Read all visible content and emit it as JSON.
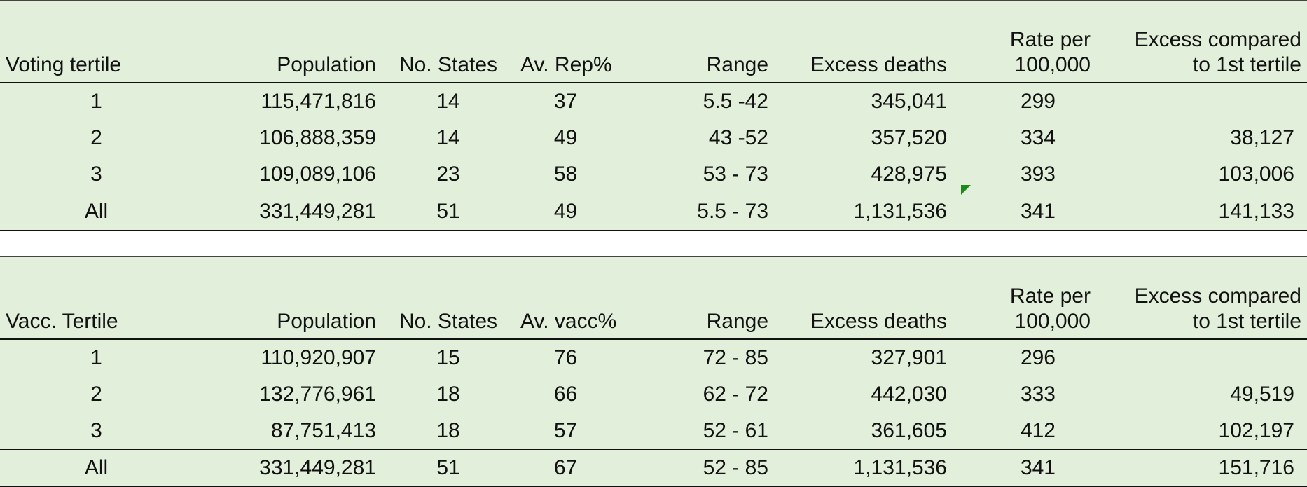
{
  "tables": [
    {
      "headers": [
        "Voting tertile",
        "Population",
        "No. States",
        "Av. Rep%",
        "Range",
        "Excess deaths",
        "Rate per 100,000",
        "Excess compared to 1st tertile"
      ],
      "rows": [
        [
          "1",
          "115,471,816",
          "14",
          "37",
          "5.5 -42",
          "345,041",
          "299",
          ""
        ],
        [
          "2",
          "106,888,359",
          "14",
          "49",
          "43 -52",
          "357,520",
          "334",
          "38,127"
        ],
        [
          "3",
          "109,089,106",
          "23",
          "58",
          "53 - 73",
          "428,975",
          "393",
          "103,006"
        ],
        [
          "All",
          "331,449,281",
          "51",
          "49",
          "5.5 - 73",
          "1,131,536",
          "341",
          "141,133"
        ]
      ]
    },
    {
      "headers": [
        "Vacc. Tertile",
        "Population",
        "No. States",
        "Av. vacc%",
        "Range",
        "Excess deaths",
        "Rate per 100,000",
        "Excess compared to 1st tertile"
      ],
      "rows": [
        [
          "1",
          "110,920,907",
          "15",
          "76",
          "72 - 85",
          "327,901",
          "296",
          ""
        ],
        [
          "2",
          "132,776,961",
          "18",
          "66",
          "62 - 72",
          "442,030",
          "333",
          "49,519"
        ],
        [
          "3",
          "87,751,413",
          "18",
          "57",
          "52 - 61",
          "361,605",
          "412",
          "102,197"
        ],
        [
          "All",
          "331,449,281",
          "51",
          "67",
          "52 - 85",
          "1,131,536",
          "341",
          "151,716"
        ]
      ]
    }
  ],
  "colors": {
    "cell_background": "#e2efda",
    "comment_marker": "#1a8a1a"
  }
}
